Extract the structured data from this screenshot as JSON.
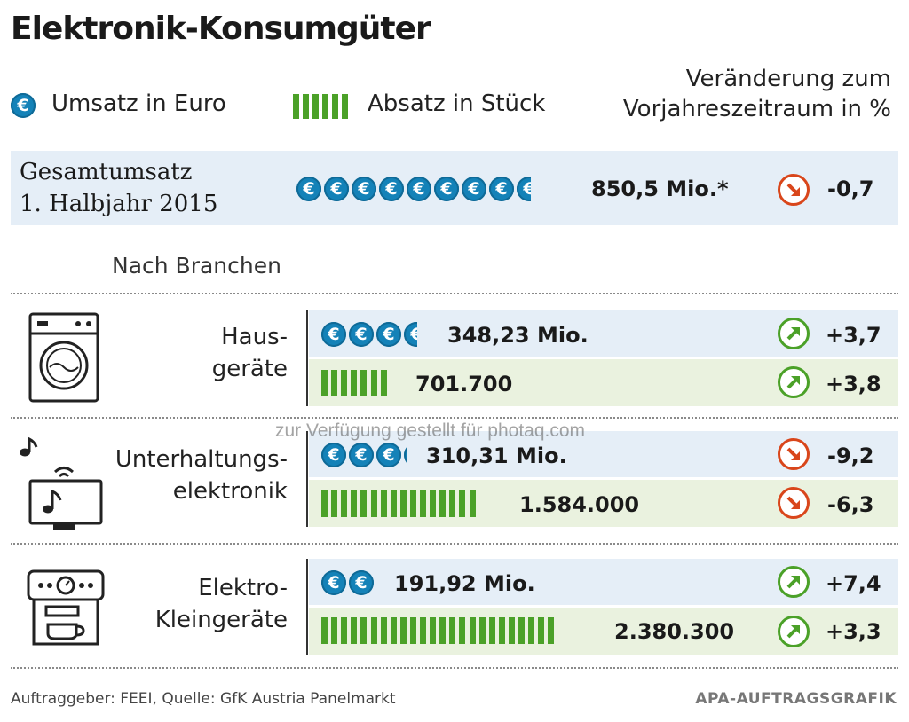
{
  "title": "Elektronik-Konsumgüter",
  "legend": {
    "revenue_label": "Umsatz in Euro",
    "units_label": "Absatz in Stück",
    "change_label_line1": "Veränderung zum",
    "change_label_line2": "Vorjahreszeitraum in %"
  },
  "total": {
    "label_line1": "Gesamtumsatz",
    "label_line2": "1. Halbjahr 2015",
    "value_label": "850,5 Mio.*",
    "value": 850.5,
    "change": "-0,7",
    "trend": "down"
  },
  "section_label": "Nach Branchen",
  "categories": [
    {
      "name_line1": "Haus-",
      "name_line2": "geräte",
      "icon": "washing-machine-icon",
      "revenue_label": "348,23 Mio.",
      "revenue": 348.23,
      "revenue_change": "+3,7",
      "revenue_trend": "up",
      "units_label": "701.700",
      "units": 701700,
      "units_change": "+3,8",
      "units_trend": "up"
    },
    {
      "name_line1": "Unterhaltungs-",
      "name_line2": "elektronik",
      "icon": "tv-music-icon",
      "revenue_label": "310,31 Mio.",
      "revenue": 310.31,
      "revenue_change": "-9,2",
      "revenue_trend": "down",
      "units_label": "1.584.000",
      "units": 1584000,
      "units_change": "-6,3",
      "units_trend": "down"
    },
    {
      "name_line1": "Elektro-",
      "name_line2": "Kleingeräte",
      "icon": "coffee-machine-icon",
      "revenue_label": "191,92 Mio.",
      "revenue": 191.92,
      "revenue_change": "+7,4",
      "revenue_trend": "up",
      "units_label": "2.380.300",
      "units": 2380300,
      "units_change": "+3,3",
      "units_trend": "up"
    }
  ],
  "source": "Auftraggeber: FEEI, Quelle: GfK Austria Panelmarkt",
  "brand": "APA-AUFTRAGSGRAFIK",
  "watermark": "zur Verfügung gestellt für photaq.com",
  "colors": {
    "euro_blue": "#1482b8",
    "bar_green": "#4ba128",
    "up_green": "#4ba128",
    "down_red": "#d9461b",
    "row_blue": "#e5eef7",
    "row_green": "#eaf2df"
  },
  "chart_data": {
    "type": "table",
    "title": "Elektronik-Konsumgüter",
    "series": [
      {
        "name": "Umsatz in Euro",
        "unit": "Mio.",
        "values": [
          348.23,
          310.31,
          191.92
        ]
      },
      {
        "name": "Absatz in Stück",
        "unit": "Stück",
        "values": [
          701700,
          1584000,
          2380300
        ]
      }
    ],
    "categories": [
      "Hausgeräte",
      "Unterhaltungselektronik",
      "Elektro-Kleingeräte"
    ],
    "changes_percent": {
      "Umsatz in Euro": [
        3.7,
        -9.2,
        7.4
      ],
      "Absatz in Stück": [
        3.8,
        -6.3,
        3.3
      ]
    },
    "total": {
      "label": "Gesamtumsatz 1. Halbjahr 2015",
      "value": 850.5,
      "unit": "Mio.",
      "change_percent": -0.7
    }
  }
}
